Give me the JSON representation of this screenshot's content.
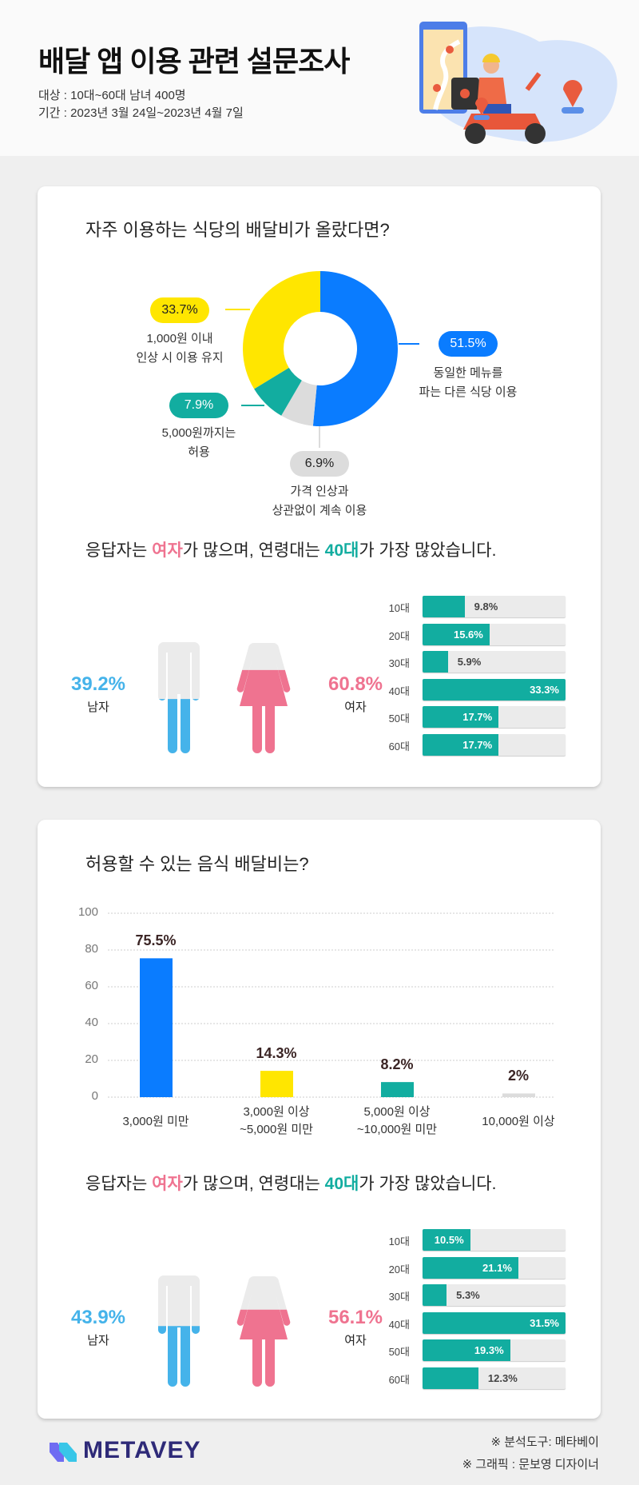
{
  "header": {
    "title": "배달 앱 이용 관련 설문조사",
    "target": "대상 : 10대~60대 남녀 400명",
    "period": "기간 : 2023년 3월 24일~2023년 4월 7일",
    "illustration": "delivery-scooter-rider"
  },
  "colors": {
    "blue": "#0a7cff",
    "yellow": "#ffe600",
    "teal": "#12ada0",
    "gray": "#dcdcdc",
    "pink": "#ef7390",
    "male": "#45b3ea"
  },
  "section1": {
    "question": "자주 이용하는 식당의 배달비가 올랐다면?",
    "chart_data": {
      "type": "pie",
      "donut": true,
      "slices": [
        {
          "label": "동일한 메뉴를 파는 다른 식당 이용",
          "value": 51.5,
          "display": "51.5%",
          "lines": [
            "동일한 메뉴를",
            "파는 다른 식당 이용"
          ],
          "color": "#0a7cff",
          "text_color": "#ffffff"
        },
        {
          "label": "가격 인상과 상관없이 계속 이용",
          "value": 6.9,
          "display": "6.9%",
          "lines": [
            "가격 인상과",
            "상관없이 계속 이용"
          ],
          "color": "#dcdcdc",
          "text_color": "#222222"
        },
        {
          "label": "5,000원까지는 허용",
          "value": 7.9,
          "display": "7.9%",
          "lines": [
            "5,000원까지는",
            "허용"
          ],
          "color": "#12ada0",
          "text_color": "#ffffff"
        },
        {
          "label": "1,000원 이내 인상 시 이용 유지",
          "value": 33.7,
          "display": "33.7%",
          "lines": [
            "1,000원 이내",
            "인상 시 이용 유지"
          ],
          "color": "#ffe600",
          "text_color": "#222222"
        }
      ]
    },
    "respondents": {
      "headline_parts": [
        "응답자는 ",
        "여자",
        "가 많으며, 연령대는 ",
        "40대",
        "가 가장 많았습니다."
      ],
      "male": {
        "percent": 39.2,
        "display": "39.2%",
        "label": "남자"
      },
      "female": {
        "percent": 60.8,
        "display": "60.8%",
        "label": "여자"
      },
      "ages": [
        {
          "label": "10대",
          "value": 9.8,
          "display": "9.8%",
          "label_style": "outside"
        },
        {
          "label": "20대",
          "value": 15.6,
          "display": "15.6%",
          "label_style": "inside"
        },
        {
          "label": "30대",
          "value": 5.9,
          "display": "5.9%",
          "label_style": "outside"
        },
        {
          "label": "40대",
          "value": 33.3,
          "display": "33.3%",
          "label_style": "inside"
        },
        {
          "label": "50대",
          "value": 17.7,
          "display": "17.7%",
          "label_style": "inside"
        },
        {
          "label": "60대",
          "value": 17.7,
          "display": "17.7%",
          "label_style": "inside"
        }
      ]
    }
  },
  "section2": {
    "question": "허용할 수 있는 음식 배달비는?",
    "chart_data": {
      "type": "bar",
      "categories": [
        [
          "3,000원 미만"
        ],
        [
          "3,000원 이상",
          "~5,000원 미만"
        ],
        [
          "5,000원 이상",
          "~10,000원 미만"
        ],
        [
          "10,000원 이상"
        ]
      ],
      "values": [
        75.5,
        14.3,
        8.2,
        2
      ],
      "value_labels": [
        "75.5%",
        "14.3%",
        "8.2%",
        "2%"
      ],
      "colors": [
        "#0a7cff",
        "#ffe600",
        "#12ada0",
        "#dcdcdc"
      ],
      "ylim": [
        0,
        100
      ],
      "yticks": [
        "0",
        "20",
        "40",
        "60",
        "80",
        "100"
      ],
      "grid": true
    },
    "respondents": {
      "headline_parts": [
        "응답자는 ",
        "여자",
        "가 많으며, 연령대는 ",
        "40대",
        "가 가장 많았습니다."
      ],
      "male": {
        "percent": 43.9,
        "display": "43.9%",
        "label": "남자"
      },
      "female": {
        "percent": 56.1,
        "display": "56.1%",
        "label": "여자"
      },
      "ages": [
        {
          "label": "10대",
          "value": 10.5,
          "display": "10.5%",
          "label_style": "inside"
        },
        {
          "label": "20대",
          "value": 21.1,
          "display": "21.1%",
          "label_style": "inside"
        },
        {
          "label": "30대",
          "value": 5.3,
          "display": "5.3%",
          "label_style": "outside"
        },
        {
          "label": "40대",
          "value": 31.5,
          "display": "31.5%",
          "label_style": "inside"
        },
        {
          "label": "50대",
          "value": 19.3,
          "display": "19.3%",
          "label_style": "inside"
        },
        {
          "label": "60대",
          "value": 12.3,
          "display": "12.3%",
          "label_style": "outside"
        }
      ]
    }
  },
  "footer": {
    "logo": "METAVEY",
    "tool": "※ 분석도구: 메타베이",
    "graphic": "※ 그래픽 : 문보영 디자이너"
  }
}
